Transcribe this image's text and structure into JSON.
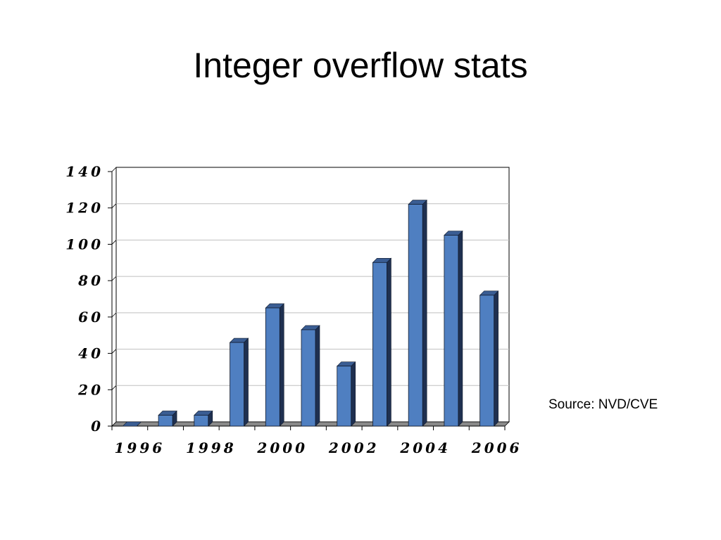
{
  "slide": {
    "title": "Integer overflow stats",
    "source": "Source:  NVD/CVE"
  },
  "colors": {
    "bar_front": "#4f7fc1",
    "bar_side": "#1f3050",
    "bar_top": "#3a5d93",
    "floor": "#8a8a8a",
    "gridline": "#bfbfbf"
  },
  "chart_data": {
    "type": "bar",
    "title": "",
    "xlabel": "",
    "ylabel": "",
    "categories": [
      "1996",
      "1997",
      "1998",
      "1999",
      "2000",
      "2001",
      "2002",
      "2003",
      "2004",
      "2005",
      "2006"
    ],
    "x_tick_labels": [
      "1996",
      "1998",
      "2000",
      "2002",
      "2004",
      "2006"
    ],
    "values": [
      0,
      6,
      6,
      46,
      65,
      53,
      33,
      90,
      122,
      105,
      72
    ],
    "y_ticks": [
      0,
      20,
      40,
      60,
      80,
      100,
      120,
      140
    ],
    "ylim": [
      0,
      140
    ],
    "grid": true,
    "legend": "none",
    "style": "3d-column"
  }
}
